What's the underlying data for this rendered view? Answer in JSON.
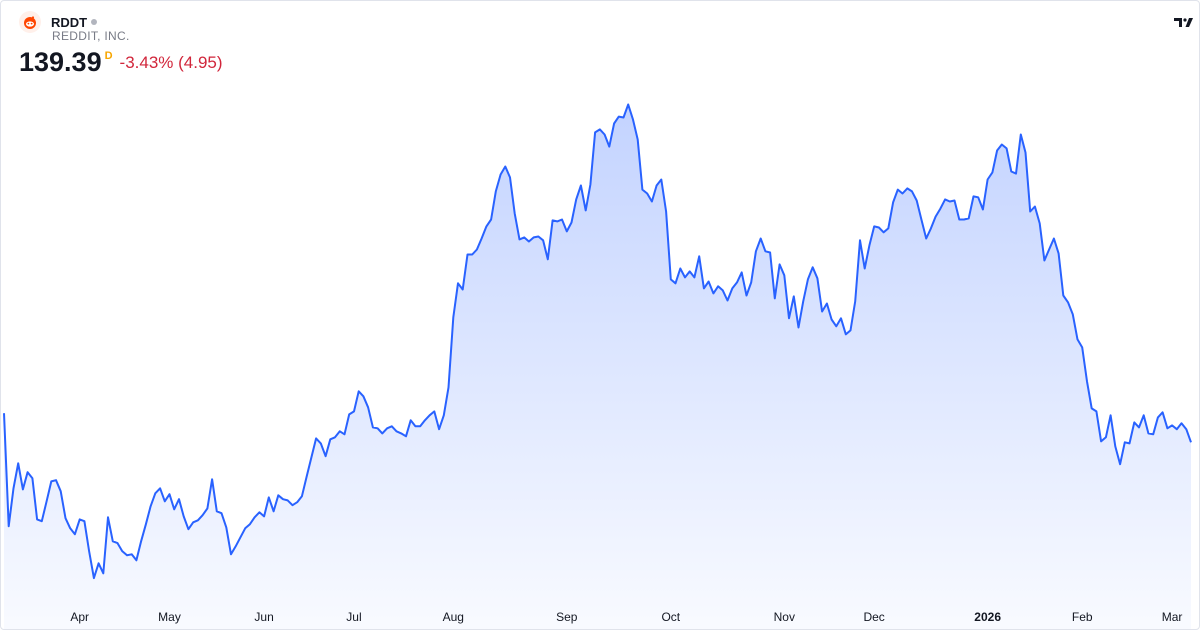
{
  "header": {
    "symbol": "RDDT",
    "company": "REDDIT, INC.",
    "price": "139.39",
    "flag": "D",
    "change": "-3.43% (4.95)"
  },
  "chart_data": {
    "type": "area",
    "color": "#2962ff",
    "values": [
      152.1,
      102.7,
      119.3,
      130.2,
      118.8,
      126.3,
      123.7,
      105.7,
      104.9,
      113.6,
      122.3,
      122.8,
      118.0,
      106.2,
      101.8,
      99.2,
      105.7,
      104.9,
      91.8,
      80.0,
      86.5,
      82.1,
      106.6,
      96.1,
      95.3,
      91.8,
      90.0,
      90.4,
      87.8,
      96.1,
      103.6,
      111.4,
      117.1,
      119.3,
      113.6,
      116.7,
      110.1,
      114.5,
      107.0,
      101.4,
      104.4,
      105.3,
      107.5,
      110.5,
      123.2,
      109.2,
      108.4,
      102.2,
      90.4,
      93.9,
      97.9,
      101.8,
      103.6,
      106.6,
      108.8,
      107.0,
      115.3,
      109.2,
      116.2,
      114.5,
      114.0,
      111.9,
      113.2,
      115.8,
      124.5,
      132.8,
      141.1,
      138.9,
      133.3,
      140.7,
      141.6,
      144.2,
      142.9,
      151.6,
      152.9,
      161.7,
      159.5,
      154.7,
      145.9,
      145.5,
      143.3,
      145.5,
      146.4,
      144.2,
      143.3,
      142.0,
      149.0,
      146.4,
      146.4,
      149.0,
      151.2,
      152.9,
      145.1,
      151.2,
      163.4,
      194.0,
      208.9,
      206.2,
      221.5,
      221.5,
      223.7,
      228.5,
      233.8,
      236.8,
      249.1,
      256.5,
      260.0,
      255.2,
      239.5,
      228.1,
      229.0,
      227.2,
      229.0,
      229.4,
      227.7,
      219.4,
      236.4,
      236.0,
      236.8,
      231.6,
      235.5,
      245.6,
      251.7,
      240.8,
      252.1,
      274.9,
      276.2,
      274.0,
      268.7,
      278.8,
      281.8,
      281.4,
      287.1,
      280.5,
      271.8,
      249.9,
      248.2,
      244.7,
      251.7,
      254.3,
      240.3,
      210.6,
      208.9,
      215.4,
      211.5,
      214.1,
      211.5,
      220.7,
      206.7,
      209.7,
      204.5,
      207.6,
      205.8,
      201.4,
      206.7,
      209.3,
      213.7,
      203.6,
      209.3,
      222.9,
      228.5,
      222.9,
      222.4,
      202.3,
      217.2,
      212.4,
      193.6,
      203.2,
      189.6,
      201.0,
      210.6,
      215.9,
      211.1,
      196.6,
      200.1,
      193.1,
      190.1,
      193.6,
      186.6,
      188.3,
      201.0,
      227.7,
      215.4,
      225.5,
      233.8,
      233.3,
      231.2,
      232.9,
      244.3,
      249.9,
      248.2,
      250.4,
      249.1,
      245.1,
      236.8,
      228.5,
      232.9,
      238.1,
      241.6,
      245.6,
      244.7,
      245.1,
      236.8,
      236.8,
      237.3,
      246.9,
      246.5,
      241.2,
      254.3,
      257.4,
      267.0,
      269.6,
      267.9,
      257.8,
      256.9,
      274.0,
      266.1,
      240.3,
      242.5,
      235.1,
      218.9,
      223.7,
      228.5,
      222.0,
      203.6,
      200.6,
      195.3,
      184.4,
      180.9,
      166.0,
      154.2,
      152.9,
      139.8,
      141.6,
      151.2,
      137.6,
      129.8,
      139.4,
      138.9,
      148.1,
      145.9,
      151.2,
      143.3,
      142.9,
      150.3,
      152.5,
      145.5,
      146.8,
      145.1,
      147.7,
      145.1,
      139.39
    ],
    "xlim": [
      0,
      251
    ],
    "ylim": [
      70,
      293
    ],
    "xticks": [
      {
        "value": 16,
        "label": "Apr"
      },
      {
        "value": 35,
        "label": "May"
      },
      {
        "value": 55,
        "label": "Jun"
      },
      {
        "value": 74,
        "label": "Jul"
      },
      {
        "value": 95,
        "label": "Aug"
      },
      {
        "value": 119,
        "label": "Sep"
      },
      {
        "value": 141,
        "label": "Oct"
      },
      {
        "value": 165,
        "label": "Nov"
      },
      {
        "value": 184,
        "label": "Dec"
      },
      {
        "value": 208,
        "label": "2026"
      },
      {
        "value": 228,
        "label": "Feb"
      },
      {
        "value": 247,
        "label": "Mar"
      }
    ]
  }
}
